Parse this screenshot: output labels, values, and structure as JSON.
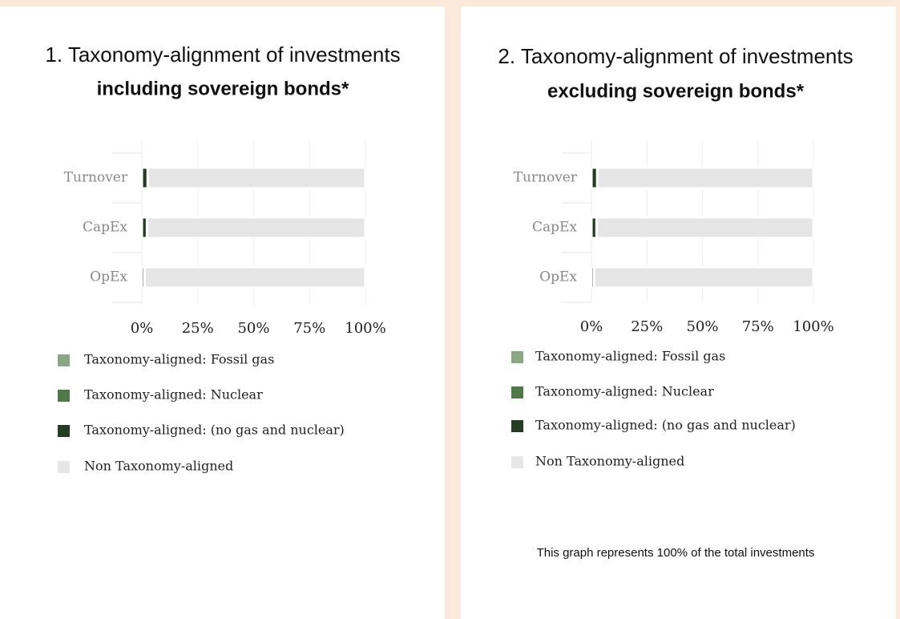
{
  "chart_data": [
    {
      "type": "bar",
      "orientation": "horizontal",
      "stacked": true,
      "title": "1. Taxonomy-alignment of investments",
      "subtitle": "including sovereign bonds*",
      "categories": [
        "Turnover",
        "CapEx",
        "OpEx"
      ],
      "series": [
        {
          "name": "Taxonomy-aligned: Fossil gas",
          "color": "#8aa783",
          "values": [
            0,
            0,
            0
          ]
        },
        {
          "name": "Taxonomy-aligned: Nuclear",
          "color": "#4f7a47",
          "values": [
            0,
            0,
            0
          ]
        },
        {
          "name": "Taxonomy-aligned: (no gas and nuclear)",
          "color": "#243d22",
          "values": [
            2.63,
            2.3,
            1.24
          ],
          "value_labels": [
            "2.63%",
            "2.30%",
            "1.24%"
          ]
        },
        {
          "name": "Non Taxonomy-aligned",
          "color": "#e6e6e6",
          "values": [
            97.37,
            97.7,
            98.76
          ]
        }
      ],
      "xlim": [
        0,
        100
      ],
      "xticks": [
        {
          "value": 0,
          "label": "0%"
        },
        {
          "value": 25,
          "label": "25%"
        },
        {
          "value": 50,
          "label": "50%"
        },
        {
          "value": 75,
          "label": "75%"
        },
        {
          "value": 100,
          "label": "100%"
        }
      ],
      "grid": true
    },
    {
      "type": "bar",
      "orientation": "horizontal",
      "stacked": true,
      "title": "2. Taxonomy-alignment of investments",
      "subtitle": "excluding sovereign bonds*",
      "categories": [
        "Turnover",
        "CapEx",
        "OpEx"
      ],
      "series": [
        {
          "name": "Taxonomy-aligned: Fossil gas",
          "color": "#8aa783",
          "values": [
            0,
            0,
            0
          ]
        },
        {
          "name": "Taxonomy-aligned: Nuclear",
          "color": "#4f7a47",
          "values": [
            0,
            0,
            0
          ]
        },
        {
          "name": "Taxonomy-aligned: (no gas and nuclear)",
          "color": "#243d22",
          "values": [
            2.63,
            2.3,
            1.24
          ],
          "value_labels": [
            "2.63%",
            "2.30%",
            "1.24%"
          ]
        },
        {
          "name": "Non Taxonomy-aligned",
          "color": "#e6e6e6",
          "values": [
            97.37,
            97.7,
            98.76
          ]
        }
      ],
      "xlim": [
        0,
        100
      ],
      "xticks": [
        {
          "value": 0,
          "label": "0%"
        },
        {
          "value": 25,
          "label": "25%"
        },
        {
          "value": 50,
          "label": "50%"
        },
        {
          "value": 75,
          "label": "75%"
        },
        {
          "value": 100,
          "label": "100%"
        }
      ],
      "grid": true,
      "note": "This graph represents 100% of the total investments"
    }
  ]
}
